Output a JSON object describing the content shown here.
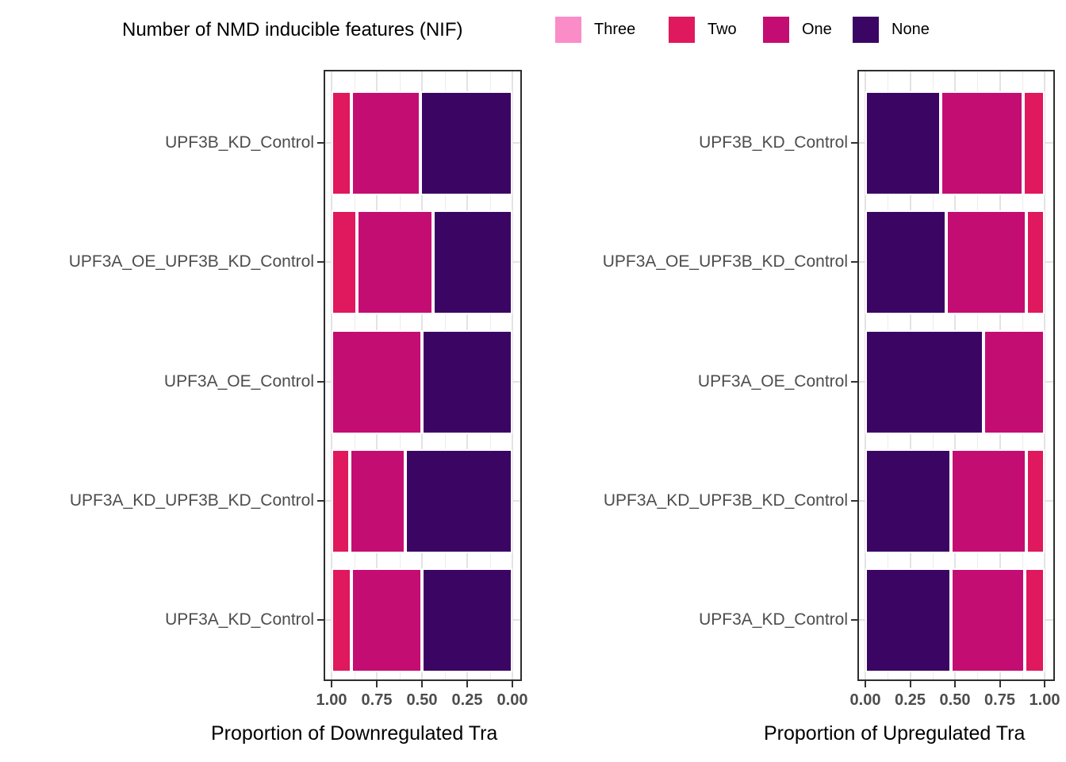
{
  "legend": {
    "title": "Number of NMD inducible features (NIF)",
    "items": [
      {
        "label": "Three",
        "color": "#FA8CC8"
      },
      {
        "label": "Two",
        "color": "#E0185E"
      },
      {
        "label": "One",
        "color": "#C40D72"
      },
      {
        "label": "None",
        "color": "#3B0663"
      }
    ]
  },
  "chart_data": [
    {
      "type": "bar",
      "orientation": "horizontal-stacked-fill",
      "xlabel": "Proportion of Downregulated Tra",
      "ylabel": "",
      "x_axis": {
        "ticks": [
          "1.00",
          "0.75",
          "0.50",
          "0.25",
          "0.00"
        ],
        "reversed": true,
        "range": [
          0,
          1
        ],
        "grid": true
      },
      "segment_order": [
        "Two",
        "One",
        "None"
      ],
      "categories": [
        "UPF3B_KD_Control",
        "UPF3A_OE_UPF3B_KD_Control",
        "UPF3A_OE_Control",
        "UPF3A_KD_UPF3B_KD_Control",
        "UPF3A_KD_Control"
      ],
      "rows": [
        {
          "category": "UPF3B_KD_Control",
          "values": {
            "Three": 0,
            "Two": 0.11,
            "One": 0.38,
            "None": 0.51
          }
        },
        {
          "category": "UPF3A_OE_UPF3B_KD_Control",
          "values": {
            "Three": 0,
            "Two": 0.14,
            "One": 0.42,
            "None": 0.44
          }
        },
        {
          "category": "UPF3A_OE_Control",
          "values": {
            "Three": 0,
            "Two": 0,
            "One": 0.5,
            "None": 0.5
          }
        },
        {
          "category": "UPF3A_KD_UPF3B_KD_Control",
          "values": {
            "Three": 0,
            "Two": 0.1,
            "One": 0.31,
            "None": 0.59
          }
        },
        {
          "category": "UPF3A_KD_Control",
          "values": {
            "Three": 0,
            "Two": 0.11,
            "One": 0.39,
            "None": 0.5
          }
        }
      ]
    },
    {
      "type": "bar",
      "orientation": "horizontal-stacked-fill",
      "xlabel": "Proportion of Upregulated Tra",
      "ylabel": "",
      "x_axis": {
        "ticks": [
          "0.00",
          "0.25",
          "0.50",
          "0.75",
          "1.00"
        ],
        "reversed": false,
        "range": [
          0,
          1
        ],
        "grid": true
      },
      "segment_order": [
        "None",
        "One",
        "Two"
      ],
      "categories": [
        "UPF3B_KD_Control",
        "UPF3A_OE_UPF3B_KD_Control",
        "UPF3A_OE_Control",
        "UPF3A_KD_UPF3B_KD_Control",
        "UPF3A_KD_Control"
      ],
      "rows": [
        {
          "category": "UPF3B_KD_Control",
          "values": {
            "Three": 0,
            "Two": 0.12,
            "One": 0.46,
            "None": 0.42
          }
        },
        {
          "category": "UPF3A_OE_UPF3B_KD_Control",
          "values": {
            "Three": 0,
            "Two": 0.1,
            "One": 0.45,
            "None": 0.45
          }
        },
        {
          "category": "UPF3A_OE_Control",
          "values": {
            "Three": 0,
            "Two": 0,
            "One": 0.34,
            "None": 0.66
          }
        },
        {
          "category": "UPF3A_KD_UPF3B_KD_Control",
          "values": {
            "Three": 0,
            "Two": 0.1,
            "One": 0.42,
            "None": 0.48
          }
        },
        {
          "category": "UPF3A_KD_Control",
          "values": {
            "Three": 0,
            "Two": 0.11,
            "One": 0.41,
            "None": 0.48
          }
        }
      ]
    }
  ]
}
